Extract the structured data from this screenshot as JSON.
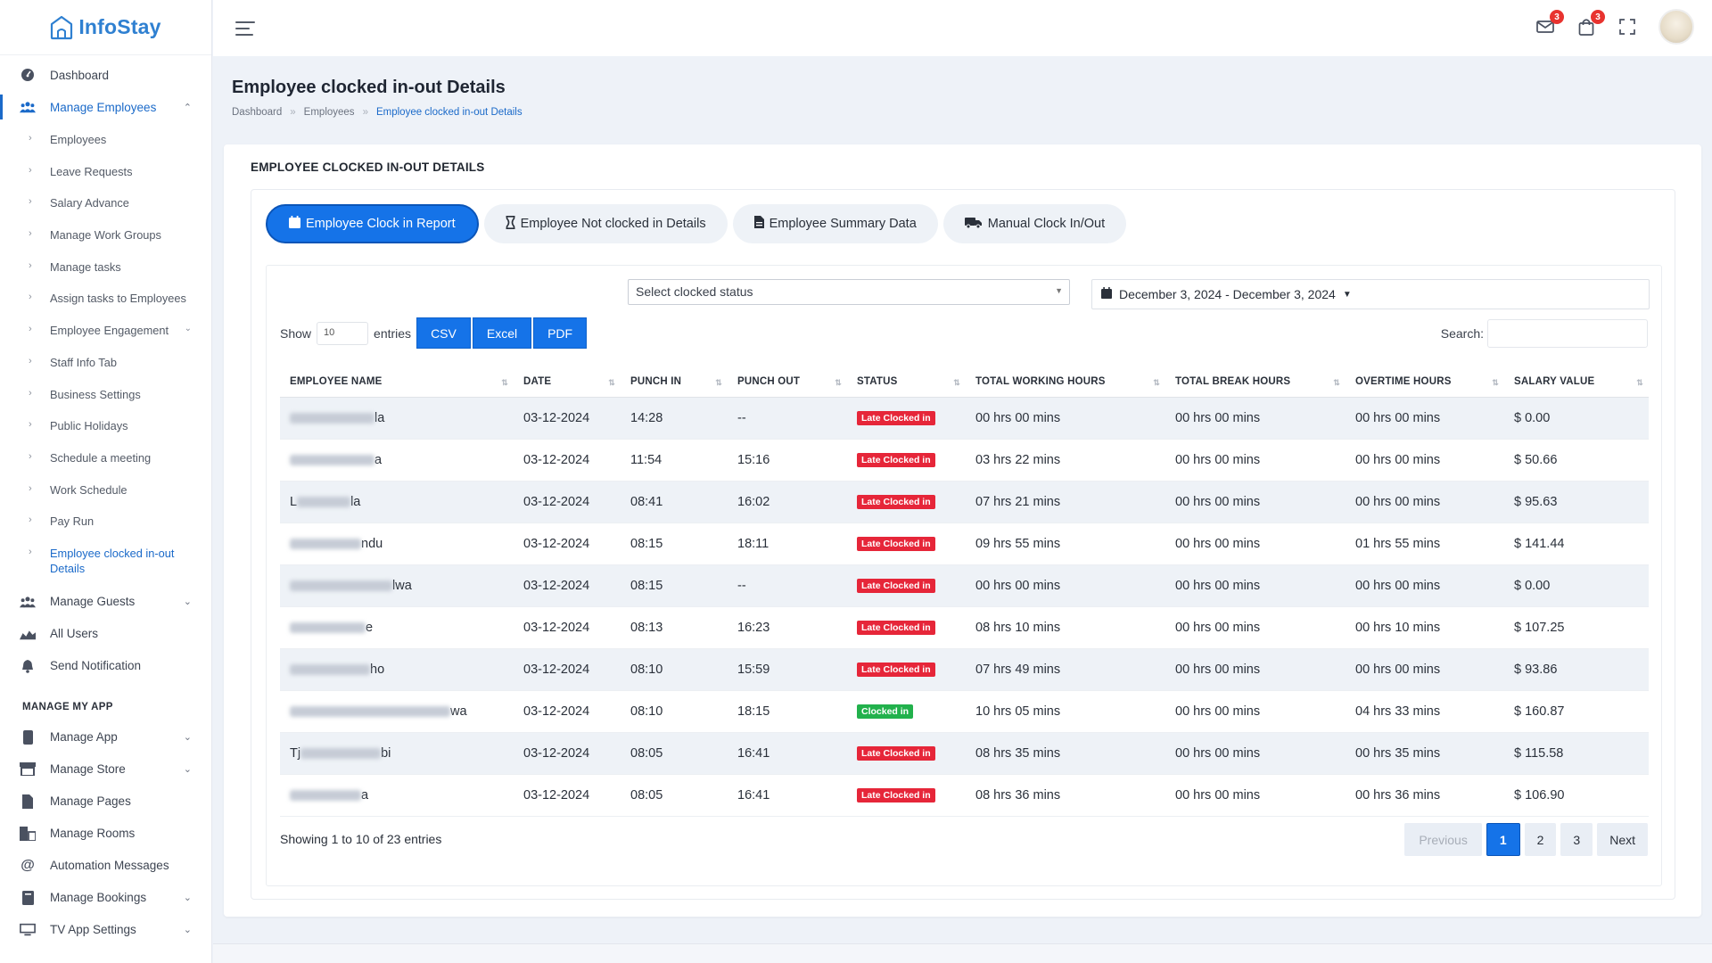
{
  "app": {
    "name": "InfoStay"
  },
  "sidebar": {
    "top_items": [
      {
        "label": "Dashboard",
        "icon": "dashboard-icon"
      },
      {
        "label": "Manage Employees",
        "icon": "group-icon",
        "expanded": true
      }
    ],
    "sub_items": [
      {
        "label": "Employees"
      },
      {
        "label": "Leave Requests"
      },
      {
        "label": "Salary Advance"
      },
      {
        "label": "Manage Work Groups"
      },
      {
        "label": "Manage tasks"
      },
      {
        "label": "Assign tasks to Employees"
      },
      {
        "label": "Employee Engagement",
        "has_children": true
      },
      {
        "label": "Staff Info Tab"
      },
      {
        "label": "Business Settings"
      },
      {
        "label": "Public Holidays"
      },
      {
        "label": "Schedule a meeting"
      },
      {
        "label": "Work Schedule"
      },
      {
        "label": "Pay Run"
      },
      {
        "label": "Employee clocked in-out Details",
        "current": true
      }
    ],
    "mid_items": [
      {
        "label": "Manage Guests",
        "icon": "group-icon",
        "has_children": true
      },
      {
        "label": "All Users",
        "icon": "users-chart-icon"
      },
      {
        "label": "Send Notification",
        "icon": "bell-icon"
      }
    ],
    "section_title": "MANAGE MY APP",
    "app_items": [
      {
        "label": "Manage App",
        "icon": "mobile-icon",
        "has_children": true
      },
      {
        "label": "Manage Store",
        "icon": "store-icon",
        "has_children": true
      },
      {
        "label": "Manage Pages",
        "icon": "file-icon"
      },
      {
        "label": "Manage Rooms",
        "icon": "building-icon"
      },
      {
        "label": "Automation Messages",
        "icon": "at-icon"
      },
      {
        "label": "Manage Bookings",
        "icon": "book-icon",
        "has_children": true
      },
      {
        "label": "TV App Settings",
        "icon": "tv-icon",
        "has_children": true
      }
    ]
  },
  "topbar": {
    "mail_badge": "3",
    "cart_badge": "3"
  },
  "page": {
    "title": "Employee clocked in-out Details",
    "breadcrumb": [
      "Dashboard",
      "Employees",
      "Employee clocked in-out Details"
    ],
    "card_title": "EMPLOYEE CLOCKED IN-OUT DETAILS"
  },
  "tabs": [
    {
      "label": "Employee Clock in Report",
      "icon": "calendar-icon",
      "active": true
    },
    {
      "label": "Employee Not clocked in Details",
      "icon": "hourglass-icon"
    },
    {
      "label": "Employee Summary Data",
      "icon": "file-lines-icon"
    },
    {
      "label": "Manual Clock In/Out",
      "icon": "truck-clock-icon"
    }
  ],
  "filters": {
    "status_placeholder": "Select clocked status",
    "date_range": "December 3, 2024 - December 3, 2024"
  },
  "controls": {
    "show_label": "Show",
    "entries_value": "10",
    "entries_label": "entries",
    "export_buttons": [
      "CSV",
      "Excel",
      "PDF"
    ],
    "search_label": "Search:"
  },
  "table": {
    "columns": [
      "EMPLOYEE NAME",
      "DATE",
      "PUNCH IN",
      "PUNCH OUT",
      "STATUS",
      "TOTAL WORKING HOURS",
      "TOTAL BREAK HOURS",
      "OVERTIME HOURS",
      "SALARY VALUE"
    ],
    "rows": [
      {
        "name_prefix": "",
        "name_suffix": "la",
        "date": "03-12-2024",
        "punch_in": "14:28",
        "punch_out": "--",
        "status": "Late Clocked in",
        "status_type": "late",
        "working": "00 hrs 00 mins",
        "break": "00 hrs 00 mins",
        "overtime": "00 hrs 00 mins",
        "salary": "$ 0.00"
      },
      {
        "name_prefix": "",
        "name_suffix": "a",
        "date": "03-12-2024",
        "punch_in": "11:54",
        "punch_out": "15:16",
        "status": "Late Clocked in",
        "status_type": "late",
        "working": "03 hrs 22 mins",
        "break": "00 hrs 00 mins",
        "overtime": "00 hrs 00 mins",
        "salary": "$ 50.66"
      },
      {
        "name_prefix": "L",
        "name_suffix": "la",
        "date": "03-12-2024",
        "punch_in": "08:41",
        "punch_out": "16:02",
        "status": "Late Clocked in",
        "status_type": "late",
        "working": "07 hrs 21 mins",
        "break": "00 hrs 00 mins",
        "overtime": "00 hrs 00 mins",
        "salary": "$ 95.63"
      },
      {
        "name_prefix": "",
        "name_suffix": "ndu",
        "date": "03-12-2024",
        "punch_in": "08:15",
        "punch_out": "18:11",
        "status": "Late Clocked in",
        "status_type": "late",
        "working": "09 hrs 55 mins",
        "break": "00 hrs 00 mins",
        "overtime": "01 hrs 55 mins",
        "salary": "$ 141.44"
      },
      {
        "name_prefix": "",
        "name_suffix": "lwa",
        "date": "03-12-2024",
        "punch_in": "08:15",
        "punch_out": "--",
        "status": "Late Clocked in",
        "status_type": "late",
        "working": "00 hrs 00 mins",
        "break": "00 hrs 00 mins",
        "overtime": "00 hrs 00 mins",
        "salary": "$ 0.00"
      },
      {
        "name_prefix": "",
        "name_suffix": "e",
        "date": "03-12-2024",
        "punch_in": "08:13",
        "punch_out": "16:23",
        "status": "Late Clocked in",
        "status_type": "late",
        "working": "08 hrs 10 mins",
        "break": "00 hrs 00 mins",
        "overtime": "00 hrs 10 mins",
        "salary": "$ 107.25"
      },
      {
        "name_prefix": "",
        "name_suffix": "ho",
        "date": "03-12-2024",
        "punch_in": "08:10",
        "punch_out": "15:59",
        "status": "Late Clocked in",
        "status_type": "late",
        "working": "07 hrs 49 mins",
        "break": "00 hrs 00 mins",
        "overtime": "00 hrs 00 mins",
        "salary": "$ 93.86"
      },
      {
        "name_prefix": "",
        "name_suffix": "wa",
        "date": "03-12-2024",
        "punch_in": "08:10",
        "punch_out": "18:15",
        "status": "Clocked in",
        "status_type": "ok",
        "working": "10 hrs 05 mins",
        "break": "00 hrs 00 mins",
        "overtime": "04 hrs 33 mins",
        "salary": "$ 160.87"
      },
      {
        "name_prefix": "Tj",
        "name_suffix": "bi",
        "date": "03-12-2024",
        "punch_in": "08:05",
        "punch_out": "16:41",
        "status": "Late Clocked in",
        "status_type": "late",
        "working": "08 hrs 35 mins",
        "break": "00 hrs 00 mins",
        "overtime": "00 hrs 35 mins",
        "salary": "$ 115.58"
      },
      {
        "name_prefix": "",
        "name_suffix": "a",
        "date": "03-12-2024",
        "punch_in": "08:05",
        "punch_out": "16:41",
        "status": "Late Clocked in",
        "status_type": "late",
        "working": "08 hrs 36 mins",
        "break": "00 hrs 00 mins",
        "overtime": "00 hrs 36 mins",
        "salary": "$ 106.90"
      }
    ]
  },
  "pagination": {
    "summary": "Showing 1 to 10 of 23 entries",
    "previous": "Previous",
    "pages": [
      "1",
      "2",
      "3"
    ],
    "current": "1",
    "next": "Next"
  },
  "colors": {
    "primary": "#1573e8",
    "late": "#e62639",
    "ok": "#22b14c",
    "brand": "#2f80d1"
  }
}
